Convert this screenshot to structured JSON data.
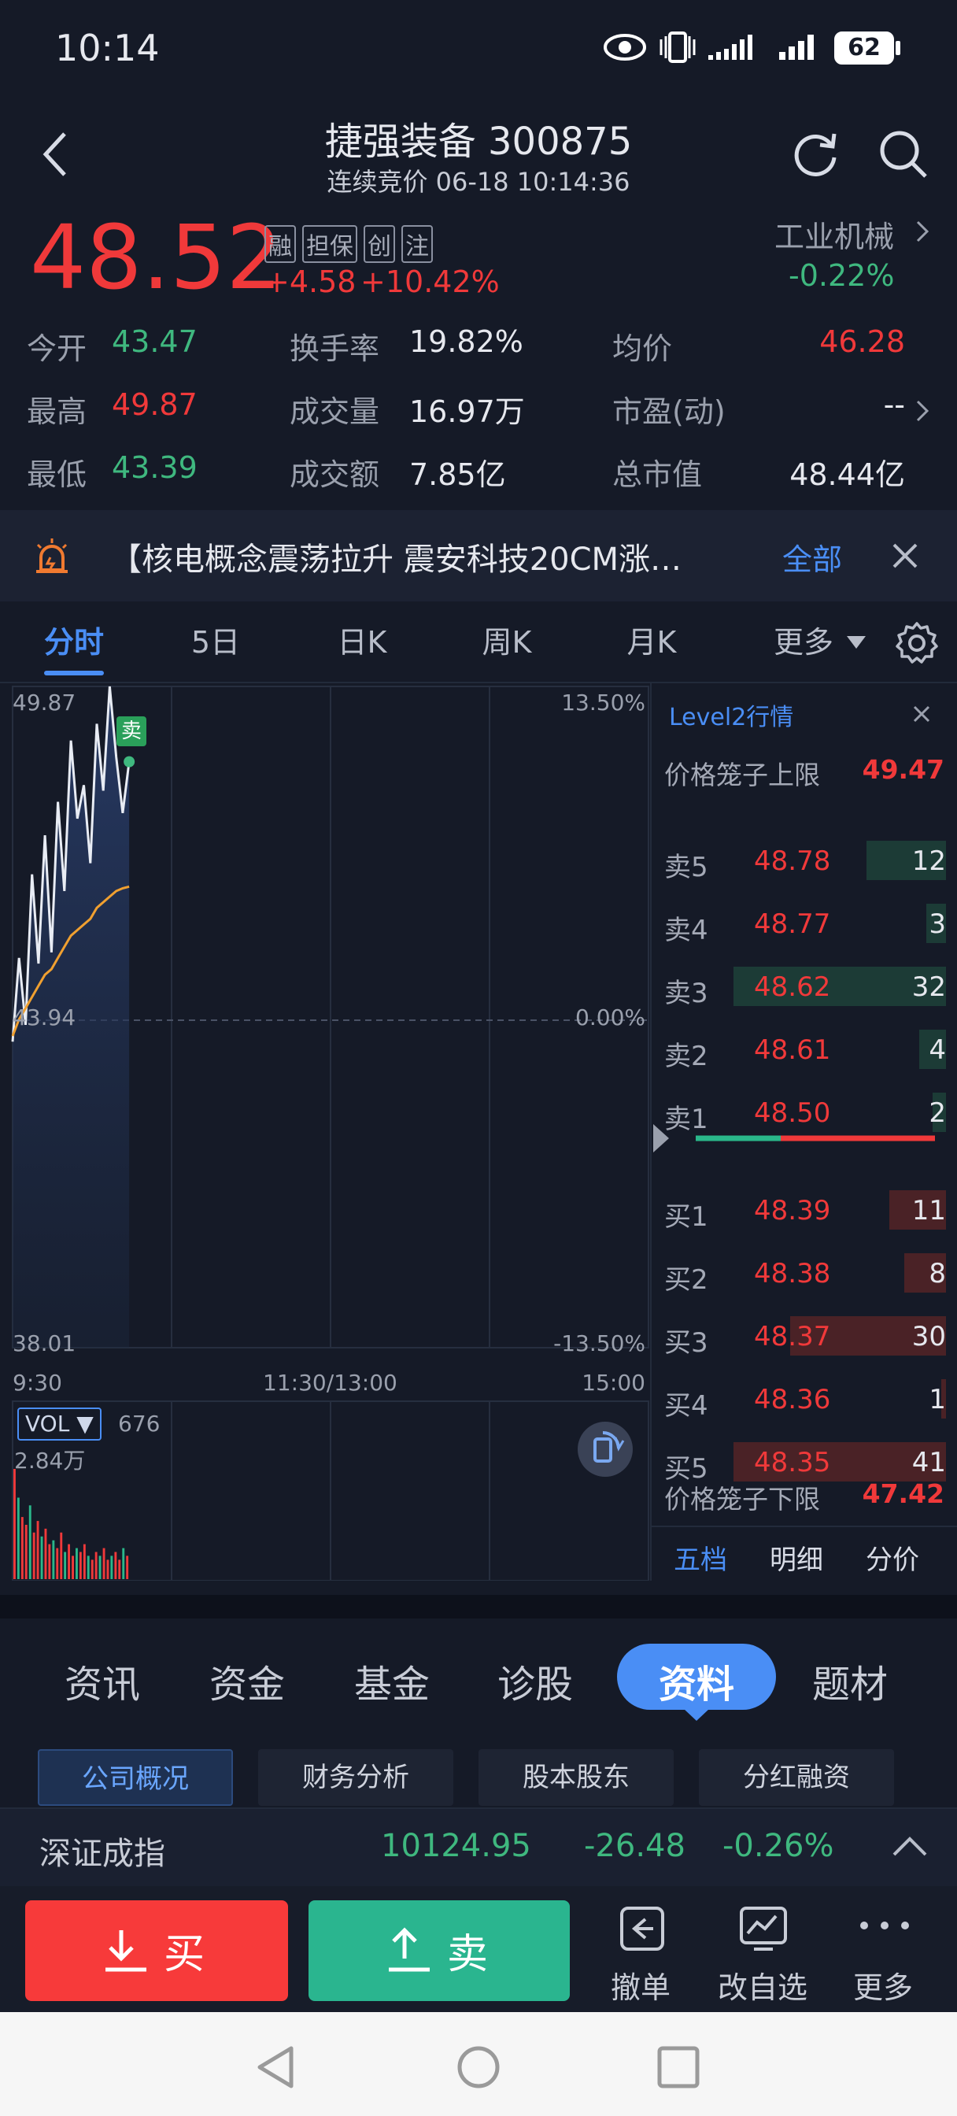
{
  "status": {
    "time": "10:14",
    "battery": "62"
  },
  "header": {
    "title": "捷强装备 300875",
    "subtitle": "连续竞价 06-18 10:14:36"
  },
  "quote": {
    "price": "48.52",
    "change": "+4.58",
    "change_pct": "+10.42%",
    "badges": [
      "融",
      "担保",
      "创",
      "注"
    ],
    "sector_name": "工业机械",
    "sector_change": "-0.22%",
    "stats": [
      {
        "label": "今开",
        "value": "43.47"
      },
      {
        "label": "换手率",
        "value": "19.82%"
      },
      {
        "label": "均价",
        "value": "46.28"
      },
      {
        "label": "最高",
        "value": "49.87"
      },
      {
        "label": "成交量",
        "value": "16.97万"
      },
      {
        "label": "市盈(动)",
        "value": "--"
      },
      {
        "label": "最低",
        "value": "43.39"
      },
      {
        "label": "成交额",
        "value": "7.85亿"
      },
      {
        "label": "总市值",
        "value": "48.44亿"
      }
    ]
  },
  "news": {
    "text": "【核电概念震荡拉升 震安科技20CM涨…",
    "all_label": "全部"
  },
  "tabs": [
    "分时",
    "5日",
    "日K",
    "周K",
    "月K",
    "更多"
  ],
  "chart": {
    "price_high": "49.87",
    "price_mid": "43.94",
    "price_low": "38.01",
    "pct_high": "13.50%",
    "pct_mid": "0.00%",
    "pct_low": "-13.50%",
    "time_start": "9:30",
    "time_mid": "11:30/13:00",
    "time_end": "15:00",
    "sell_marker": "卖",
    "vol_label": "VOL ▼",
    "vol_value": "676",
    "vol_max": "2.84万"
  },
  "chart_data": {
    "type": "line",
    "ylim": [
      38.01,
      49.87
    ],
    "series": [
      {
        "values": [
          43.5,
          45.0,
          43.8,
          46.5,
          44.9,
          47.2,
          45.1,
          47.8,
          46.2,
          48.9,
          47.5,
          48.1,
          46.7,
          49.2,
          48.0,
          49.87,
          48.6,
          47.6,
          48.52
        ]
      },
      {
        "values": [
          43.6,
          43.9,
          44.1,
          44.3,
          44.5,
          44.7,
          44.8,
          45.0,
          45.2,
          45.4,
          45.5,
          45.6,
          45.7,
          45.9,
          46.0,
          46.1,
          46.2,
          46.25,
          46.28
        ]
      }
    ],
    "volume": [
      2.84,
      2.1,
      1.6,
      1.4,
      1.9,
      1.2,
      1.5,
      1.1,
      1.3,
      0.9,
      1.0,
      0.8,
      1.2,
      0.7,
      0.9,
      0.6,
      0.8,
      0.7,
      0.9,
      0.6,
      0.5,
      0.7,
      0.6,
      0.8,
      0.5,
      0.6,
      0.7,
      0.5,
      0.8,
      0.6
    ]
  },
  "level2": {
    "title": "Level2行情",
    "upper_label": "价格笼子上限",
    "upper_value": "49.47",
    "lower_label": "价格笼子下限",
    "lower_value": "47.42",
    "asks": [
      {
        "label": "卖5",
        "price": "48.78",
        "vol": "12",
        "ratio": 0.375
      },
      {
        "label": "卖4",
        "price": "48.77",
        "vol": "3",
        "ratio": 0.094
      },
      {
        "label": "卖3",
        "price": "48.62",
        "vol": "32",
        "ratio": 1.0
      },
      {
        "label": "卖2",
        "price": "48.61",
        "vol": "4",
        "ratio": 0.125
      },
      {
        "label": "卖1",
        "price": "48.50",
        "vol": "2",
        "ratio": 0.063
      }
    ],
    "bids": [
      {
        "label": "买1",
        "price": "48.39",
        "vol": "11",
        "ratio": 0.268
      },
      {
        "label": "买2",
        "price": "48.38",
        "vol": "8",
        "ratio": 0.195
      },
      {
        "label": "买3",
        "price": "48.37",
        "vol": "30",
        "ratio": 0.732
      },
      {
        "label": "买4",
        "price": "48.36",
        "vol": "1",
        "ratio": 0.024
      },
      {
        "label": "买5",
        "price": "48.35",
        "vol": "41",
        "ratio": 1.0
      }
    ],
    "bottom_tabs": [
      "五档",
      "明细",
      "分价"
    ]
  },
  "info_tabs": [
    "资讯",
    "资金",
    "基金",
    "诊股",
    "资料",
    "题材"
  ],
  "info_subtabs": [
    "公司概况",
    "财务分析",
    "股本股东",
    "分红融资"
  ],
  "index": {
    "name": "深证成指",
    "value": "10124.95",
    "change": "-26.48",
    "pct": "-0.26%"
  },
  "actions": {
    "buy": "买",
    "sell": "卖",
    "cancel": "撤单",
    "edit": "改自选",
    "more": "更多"
  }
}
